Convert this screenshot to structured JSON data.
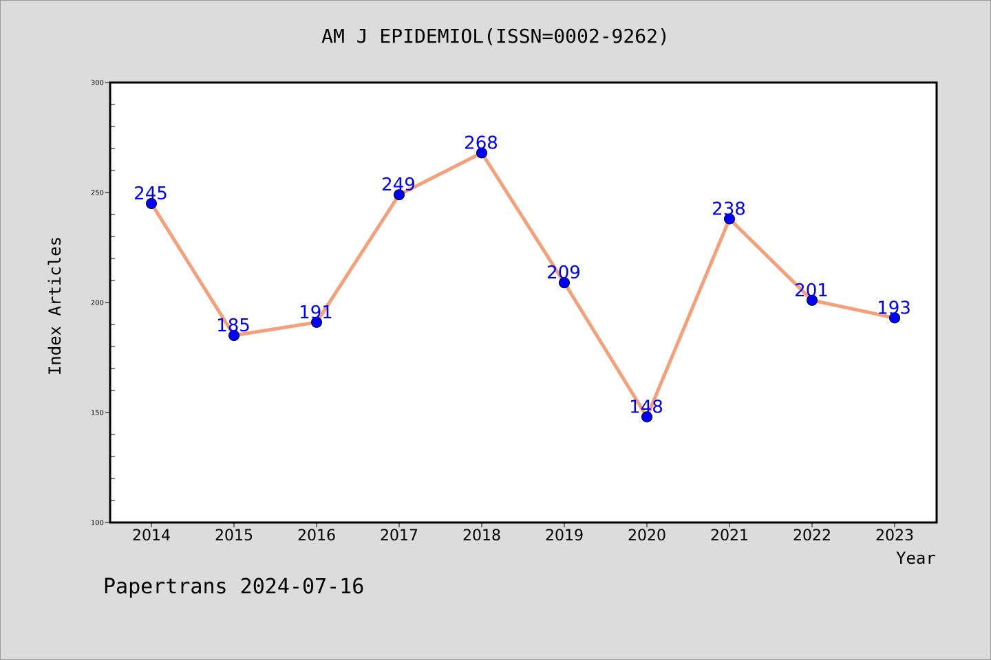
{
  "chart_data": {
    "type": "line",
    "title": "AM J EPIDEMIOL(ISSN=0002-9262)",
    "xlabel": "Year",
    "ylabel": "Index Articles",
    "categories": [
      "2014",
      "2015",
      "2016",
      "2017",
      "2018",
      "2019",
      "2020",
      "2021",
      "2022",
      "2023"
    ],
    "series": [
      {
        "values": [
          245,
          185,
          191,
          249,
          268,
          209,
          148,
          238,
          201,
          193
        ]
      }
    ],
    "ylim": [
      100,
      300
    ],
    "yticks": [
      100,
      150,
      200,
      250,
      300
    ],
    "grid": false,
    "line_color": "#f4a07a",
    "marker_color": "#0000ff",
    "label_color": "#0000ff"
  },
  "footer": "Papertrans 2024-07-16"
}
